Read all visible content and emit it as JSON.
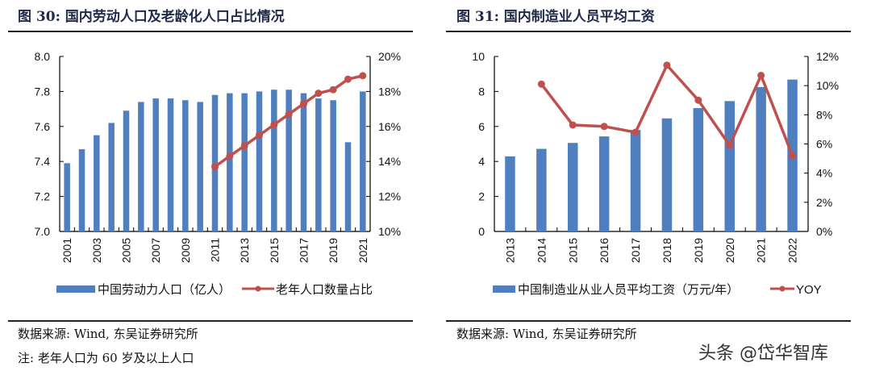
{
  "panels": [
    {
      "title": "图 30:  国内劳动人口及老龄化人口占比情况",
      "source": "数据来源:  Wind,  东吴证券研究所",
      "note": "注:  老年人口为 60 岁及以上人口"
    },
    {
      "title": "图 31:  国内制造业人员平均工资",
      "source": "数据来源:  Wind,  东吴证券研究所"
    }
  ],
  "watermark": "头条 @岱华智库",
  "colors": {
    "bar": "#4f7fbf",
    "line": "#c0504d"
  },
  "chart_data": [
    {
      "type": "bar+line",
      "categories": [
        "2001",
        "2002",
        "2003",
        "2004",
        "2005",
        "2006",
        "2007",
        "2008",
        "2009",
        "2010",
        "2011",
        "2012",
        "2013",
        "2014",
        "2015",
        "2016",
        "2017",
        "2018",
        "2019",
        "2020",
        "2021"
      ],
      "tick_labels": [
        "2001",
        "2003",
        "2005",
        "2007",
        "2009",
        "2011",
        "2013",
        "2015",
        "2017",
        "2019",
        "2021"
      ],
      "series": [
        {
          "name": "中国劳动力人口（亿人）",
          "type": "bar",
          "axis": "left",
          "values": [
            7.39,
            7.47,
            7.55,
            7.62,
            7.69,
            7.74,
            7.76,
            7.76,
            7.75,
            7.74,
            7.78,
            7.79,
            7.79,
            7.8,
            7.81,
            7.81,
            7.79,
            7.76,
            7.75,
            7.51,
            7.8
          ]
        },
        {
          "name": "老年人口数量占比",
          "type": "line",
          "axis": "right",
          "values": [
            null,
            null,
            null,
            null,
            null,
            null,
            null,
            null,
            null,
            null,
            13.7,
            14.3,
            14.9,
            15.5,
            16.1,
            16.7,
            17.3,
            17.9,
            18.1,
            18.7,
            18.9
          ]
        }
      ],
      "ylim_left": [
        7.0,
        8.0
      ],
      "yticks_left": [
        "7.0",
        "7.2",
        "7.4",
        "7.6",
        "7.8",
        "8.0"
      ],
      "ylim_right": [
        10,
        20
      ],
      "yticks_right": [
        "10%",
        "12%",
        "14%",
        "16%",
        "18%",
        "20%"
      ],
      "grid": false,
      "legend": "bottom"
    },
    {
      "type": "bar+line",
      "categories": [
        "2013",
        "2014",
        "2015",
        "2016",
        "2017",
        "2018",
        "2019",
        "2020",
        "2021",
        "2022"
      ],
      "tick_labels": [
        "2013",
        "2014",
        "2015",
        "2016",
        "2017",
        "2018",
        "2019",
        "2020",
        "2021",
        "2022"
      ],
      "series": [
        {
          "name": "中国制造业从业人员平均工资（万元/年）",
          "type": "bar",
          "axis": "left",
          "values": [
            4.29,
            4.72,
            5.06,
            5.43,
            5.8,
            6.46,
            7.05,
            7.45,
            8.25,
            8.68
          ]
        },
        {
          "name": "YOY",
          "type": "line",
          "axis": "right",
          "values": [
            null,
            10.1,
            7.3,
            7.2,
            6.8,
            11.4,
            9.0,
            5.9,
            10.7,
            5.2
          ]
        }
      ],
      "ylim_left": [
        0,
        10
      ],
      "yticks_left": [
        "0",
        "2",
        "4",
        "6",
        "8",
        "10"
      ],
      "ylim_right": [
        0,
        12
      ],
      "yticks_right": [
        "0%",
        "2%",
        "4%",
        "6%",
        "8%",
        "10%",
        "12%"
      ],
      "grid": false,
      "legend": "bottom"
    }
  ]
}
